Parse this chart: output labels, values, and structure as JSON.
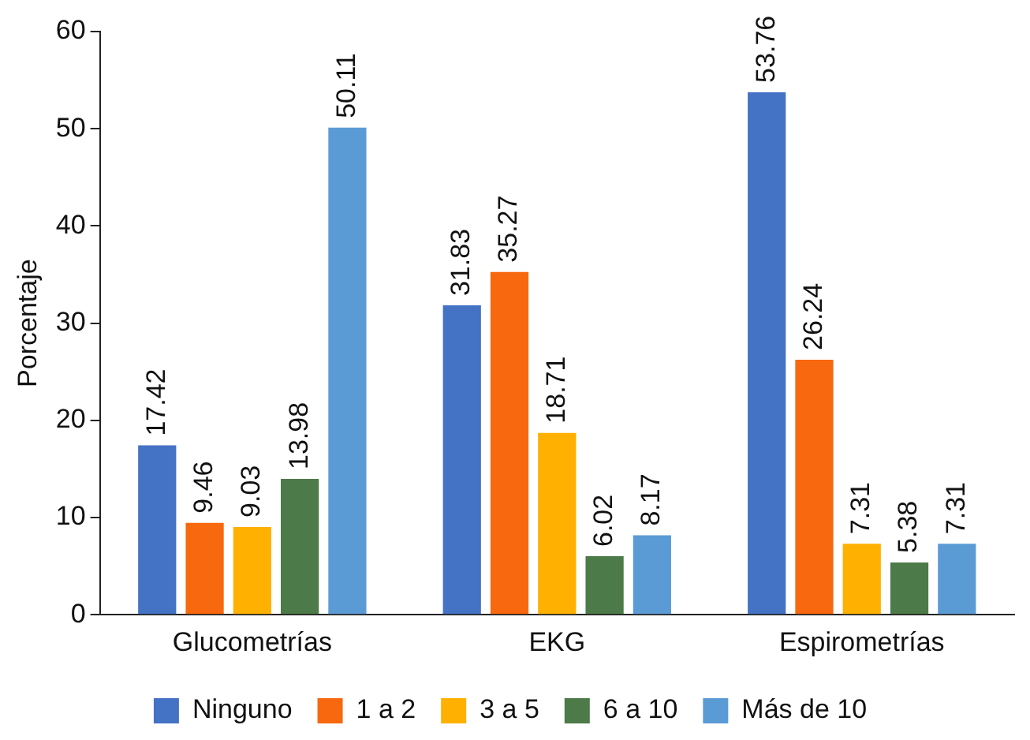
{
  "chart_data": {
    "type": "bar",
    "ylabel": "Porcentaje",
    "categories": [
      "Glucometrías",
      "EKG",
      "Espirometrías"
    ],
    "series": [
      {
        "name": "Ninguno",
        "color": "#4472c4",
        "values": [
          17.42,
          31.83,
          53.76
        ]
      },
      {
        "name": "1 a 2",
        "color": "#f7680f",
        "values": [
          9.46,
          35.27,
          26.24
        ]
      },
      {
        "name": "3 a 5",
        "color": "#ffb000",
        "values": [
          9.03,
          18.71,
          7.31
        ]
      },
      {
        "name": "6 a 10",
        "color": "#4c7a48",
        "values": [
          13.98,
          6.02,
          5.38
        ]
      },
      {
        "name": "Más de 10",
        "color": "#5b9bd5",
        "values": [
          50.11,
          8.17,
          7.31
        ]
      }
    ],
    "ylim": [
      0,
      60
    ],
    "yticks": [
      0,
      10,
      20,
      30,
      40,
      50,
      60
    ],
    "grid": false,
    "legend": "bottom",
    "data_labels": true
  }
}
